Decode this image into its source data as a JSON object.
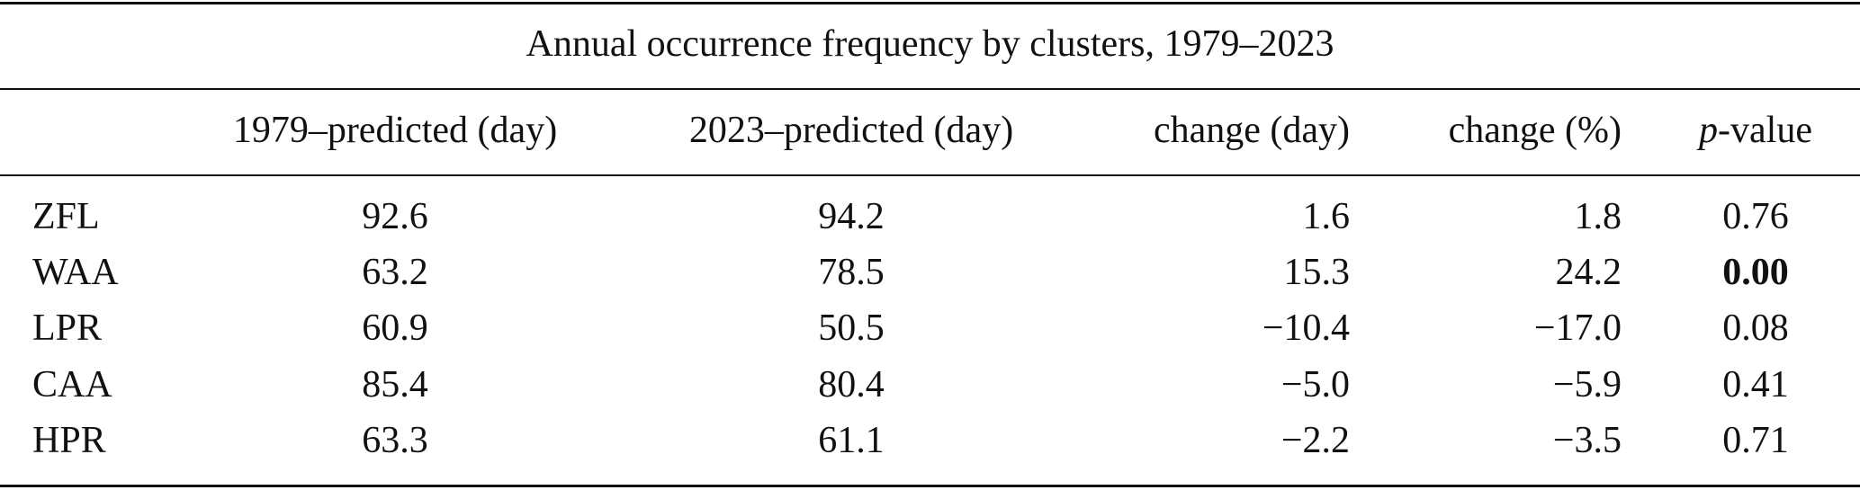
{
  "table": {
    "title": "Annual occurrence frequency by clusters, 1979–2023",
    "columns": [
      "",
      "1979–predicted (day)",
      "2023–predicted (day)",
      "change (day)",
      "change (%)",
      "p-value"
    ],
    "italic_prefix_columns": [
      5
    ],
    "rows": [
      [
        "ZFL",
        "92.6",
        "94.2",
        "1.6",
        "1.8",
        "0.76"
      ],
      [
        "WAA",
        "63.2",
        "78.5",
        "15.3",
        "24.2",
        "0.00"
      ],
      [
        "LPR",
        "60.9",
        "50.5",
        "−10.4",
        "−17.0",
        "0.08"
      ],
      [
        "CAA",
        "85.4",
        "80.4",
        "−5.0",
        "−5.9",
        "0.41"
      ],
      [
        "HPR",
        "63.3",
        "61.1",
        "−2.2",
        "−3.5",
        "0.71"
      ]
    ],
    "bold_cells": [
      [
        1,
        5
      ]
    ]
  }
}
